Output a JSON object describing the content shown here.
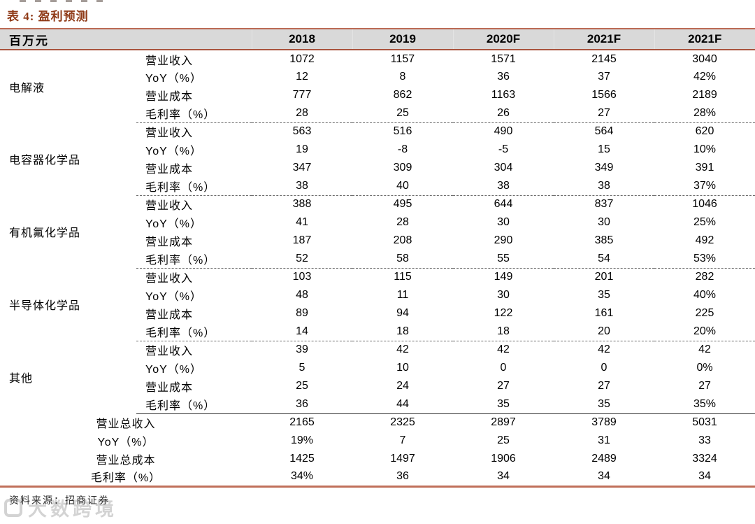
{
  "title": "表 4:  盈利预测",
  "header": {
    "unit_label": "百万元",
    "columns": [
      "2018",
      "2019",
      "2020F",
      "2021F",
      "2021F"
    ]
  },
  "metric_labels": [
    "营业收入",
    "YoY（%）",
    "营业成本",
    "毛利率（%）"
  ],
  "groups": [
    {
      "name": "电解液",
      "rows": [
        [
          "1072",
          "1157",
          "1571",
          "2145",
          "3040"
        ],
        [
          "12",
          "8",
          "36",
          "37",
          "42%"
        ],
        [
          "777",
          "862",
          "1163",
          "1566",
          "2189"
        ],
        [
          "28",
          "25",
          "26",
          "27",
          "28%"
        ]
      ]
    },
    {
      "name": "电容器化学品",
      "rows": [
        [
          "563",
          "516",
          "490",
          "564",
          "620"
        ],
        [
          "19",
          "-8",
          "-5",
          "15",
          "10%"
        ],
        [
          "347",
          "309",
          "304",
          "349",
          "391"
        ],
        [
          "38",
          "40",
          "38",
          "38",
          "37%"
        ]
      ]
    },
    {
      "name": "有机氟化学品",
      "rows": [
        [
          "388",
          "495",
          "644",
          "837",
          "1046"
        ],
        [
          "41",
          "28",
          "30",
          "30",
          "25%"
        ],
        [
          "187",
          "208",
          "290",
          "385",
          "492"
        ],
        [
          "52",
          "58",
          "55",
          "54",
          "53%"
        ]
      ]
    },
    {
      "name": "半导体化学品",
      "rows": [
        [
          "103",
          "115",
          "149",
          "201",
          "282"
        ],
        [
          "48",
          "11",
          "30",
          "35",
          "40%"
        ],
        [
          "89",
          "94",
          "122",
          "161",
          "225"
        ],
        [
          "14",
          "18",
          "18",
          "20",
          "20%"
        ]
      ]
    },
    {
      "name": "其他",
      "rows": [
        [
          "39",
          "42",
          "42",
          "42",
          "42"
        ],
        [
          "5",
          "10",
          "0",
          "0",
          "0%"
        ],
        [
          "25",
          "24",
          "27",
          "27",
          "27"
        ],
        [
          "36",
          "44",
          "35",
          "35",
          "35%"
        ]
      ]
    }
  ],
  "summary": [
    {
      "label": "营业总收入",
      "values": [
        "2165",
        "2325",
        "2897",
        "3789",
        "5031"
      ]
    },
    {
      "label": "YoY（%）",
      "values": [
        "19%",
        "7",
        "25",
        "31",
        "33"
      ]
    },
    {
      "label": "营业总成本",
      "values": [
        "1425",
        "1497",
        "1906",
        "2489",
        "3324"
      ]
    },
    {
      "label": "毛利率（%）",
      "values": [
        "34%",
        "36",
        "34",
        "34",
        "34"
      ]
    }
  ],
  "footer": {
    "source": "资料来源：招商证券"
  },
  "watermark": {
    "text": "大数跨境"
  },
  "colors": {
    "accent": "#8f3a17",
    "header_bg": "#d9d9d9",
    "rule_red": "#b05c48",
    "dash_line": "#6d6d6d"
  },
  "chart_data": {
    "type": "table",
    "title": "表 4: 盈利预测",
    "unit": "百万元",
    "columns": [
      "2018",
      "2019",
      "2020F",
      "2021F",
      "2021F"
    ],
    "sections": [
      {
        "name": "电解液",
        "营业收入": [
          1072,
          1157,
          1571,
          2145,
          3040
        ],
        "YoY%": [
          12,
          8,
          36,
          37,
          "42%"
        ],
        "营业成本": [
          777,
          862,
          1163,
          1566,
          2189
        ],
        "毛利率%": [
          28,
          25,
          26,
          27,
          "28%"
        ]
      },
      {
        "name": "电容器化学品",
        "营业收入": [
          563,
          516,
          490,
          564,
          620
        ],
        "YoY%": [
          19,
          -8,
          -5,
          15,
          "10%"
        ],
        "营业成本": [
          347,
          309,
          304,
          349,
          391
        ],
        "毛利率%": [
          38,
          40,
          38,
          38,
          "37%"
        ]
      },
      {
        "name": "有机氟化学品",
        "营业收入": [
          388,
          495,
          644,
          837,
          1046
        ],
        "YoY%": [
          41,
          28,
          30,
          30,
          "25%"
        ],
        "营业成本": [
          187,
          208,
          290,
          385,
          492
        ],
        "毛利率%": [
          52,
          58,
          55,
          54,
          "53%"
        ]
      },
      {
        "name": "半导体化学品",
        "营业收入": [
          103,
          115,
          149,
          201,
          282
        ],
        "YoY%": [
          48,
          11,
          30,
          35,
          "40%"
        ],
        "营业成本": [
          89,
          94,
          122,
          161,
          225
        ],
        "毛利率%": [
          14,
          18,
          18,
          20,
          "20%"
        ]
      },
      {
        "name": "其他",
        "营业收入": [
          39,
          42,
          42,
          42,
          42
        ],
        "YoY%": [
          5,
          10,
          0,
          0,
          "0%"
        ],
        "营业成本": [
          25,
          24,
          27,
          27,
          27
        ],
        "毛利率%": [
          36,
          44,
          35,
          35,
          "35%"
        ]
      }
    ],
    "totals": {
      "营业总收入": [
        "2165",
        "2325",
        "2897",
        "3789",
        "5031"
      ],
      "YoY%": [
        "19%",
        "7",
        "25",
        "31",
        "33"
      ],
      "营业总成本": [
        "1425",
        "1497",
        "1906",
        "2489",
        "3324"
      ],
      "毛利率%": [
        "34%",
        "36",
        "34",
        "34",
        "34"
      ]
    },
    "source": "资料来源：招商证券"
  }
}
